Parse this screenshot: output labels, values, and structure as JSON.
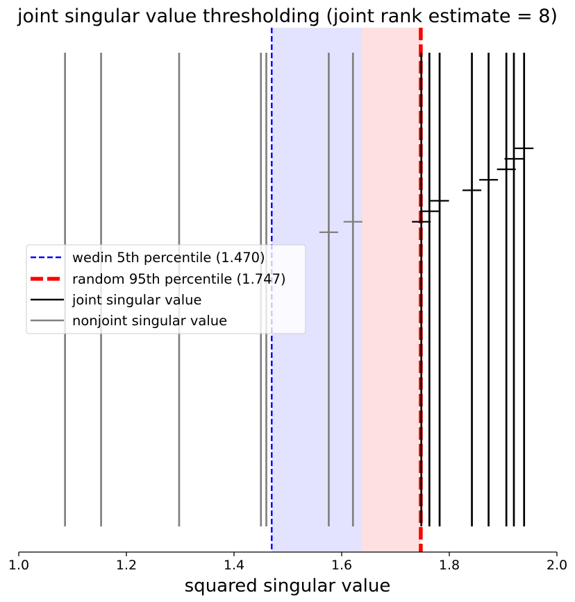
{
  "chart_data": {
    "type": "line",
    "title": "joint singular value thresholding (joint rank estimate = 8)",
    "xlabel": "squared singular value",
    "ylabel": "",
    "xlim": [
      1.0,
      2.0
    ],
    "x_ticks": [
      "1.0",
      "1.2",
      "1.4",
      "1.6",
      "1.8",
      "2.0"
    ],
    "grid": false,
    "legend_position": "center-left",
    "thresholds": [
      {
        "name": "wedin 5th percentile (1.470)",
        "value": 1.47,
        "color": "#0000ff",
        "style": "dashed"
      },
      {
        "name": "random 95th percentile (1.747)",
        "value": 1.747,
        "color": "#ff0000",
        "style": "dashed-thick"
      }
    ],
    "shaded_regions": [
      {
        "name": "wedin region",
        "from": 1.47,
        "to": 1.638,
        "color": "#0000ff",
        "opacity": 0.11
      },
      {
        "name": "random region",
        "from": 1.638,
        "to": 1.747,
        "color": "#ff0000",
        "opacity": 0.12
      }
    ],
    "series": [
      {
        "name": "joint singular value",
        "color": "#000000",
        "values": [
          1.748,
          1.763,
          1.782,
          1.842,
          1.873,
          1.906,
          1.92,
          1.939
        ],
        "marker_heights": [
          0.63,
          0.65,
          0.67,
          0.69,
          0.71,
          0.73,
          0.75,
          0.77
        ]
      },
      {
        "name": "nonjoint singular value",
        "color": "#808080",
        "values": [
          1.086,
          1.153,
          1.298,
          1.45,
          1.46,
          1.576,
          1.621
        ],
        "marker_heights": [
          null,
          null,
          null,
          null,
          null,
          0.61,
          0.63
        ]
      }
    ]
  }
}
